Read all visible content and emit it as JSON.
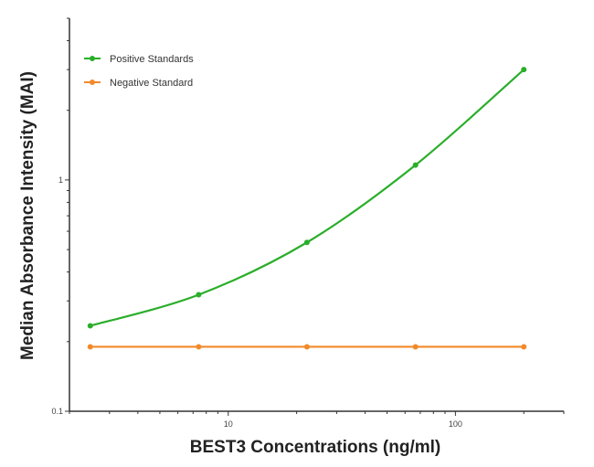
{
  "chart_data": {
    "type": "line",
    "title": "",
    "xlabel": "BEST3 Concentrations (ng/ml)",
    "ylabel": "Median Absorbance Intensity (MAI)",
    "x_scale": "log",
    "y_scale": "log",
    "xlim": [
      2,
      300
    ],
    "ylim": [
      0.1,
      5
    ],
    "x_ticks": [
      {
        "value": 10,
        "label": "10"
      },
      {
        "value": 100,
        "label": "100"
      }
    ],
    "y_ticks": [
      {
        "value": 0.1,
        "label": "0.1"
      },
      {
        "value": 1,
        "label": "1"
      }
    ],
    "grid": false,
    "legend_position": "top-left",
    "series": [
      {
        "name": "Positive Standards",
        "color": "#2aae2a",
        "x": [
          2.47,
          7.41,
          22.2,
          66.7,
          200
        ],
        "y": [
          0.234,
          0.319,
          0.537,
          1.16,
          3.0
        ]
      },
      {
        "name": "Negative Standard",
        "color": "#f28a2a",
        "x": [
          2.47,
          7.41,
          22.2,
          66.7,
          200
        ],
        "y": [
          0.19,
          0.19,
          0.19,
          0.19,
          0.19
        ]
      }
    ]
  }
}
